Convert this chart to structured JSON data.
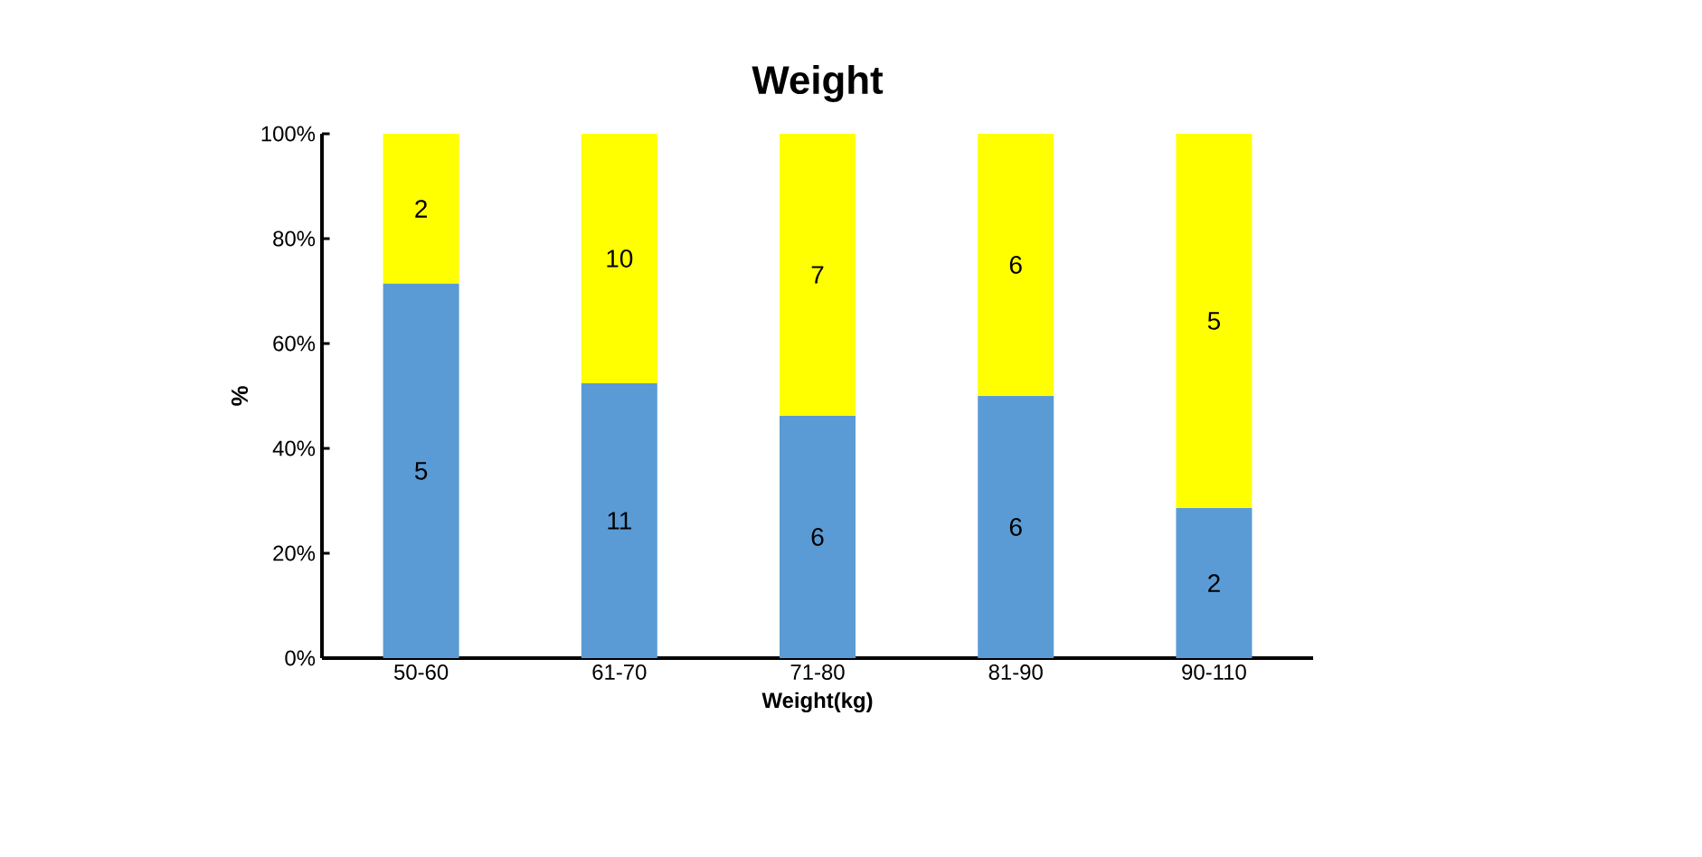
{
  "chart_data": {
    "type": "bar",
    "title": "Weight",
    "xlabel": "Weight(kg)",
    "ylabel": "%",
    "stacked": true,
    "categories": [
      "50-60",
      "61-70",
      "71-80",
      "81-90",
      "90-110"
    ],
    "series": [
      {
        "color": "#5b9bd5",
        "values": [
          71.4,
          52.4,
          46.2,
          50.0,
          28.6
        ]
      },
      {
        "color": "#ffff00",
        "values": [
          28.6,
          47.6,
          53.8,
          50.0,
          71.4
        ]
      }
    ],
    "annotations": [
      "5",
      "11",
      "6",
      "6",
      "2",
      "2",
      "10",
      "7",
      "6",
      "5"
    ],
    "ylim": [
      0,
      100
    ],
    "yticks": [
      {
        "value": 0,
        "label": "0%"
      },
      {
        "value": 20,
        "label": "20%"
      },
      {
        "value": 40,
        "label": "40%"
      },
      {
        "value": 60,
        "label": "60%"
      },
      {
        "value": 80,
        "label": "80%"
      },
      {
        "value": 100,
        "label": "100%"
      }
    ]
  }
}
